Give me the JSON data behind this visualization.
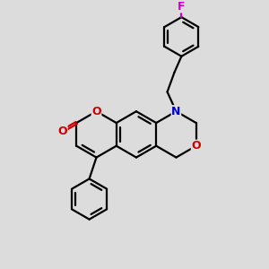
{
  "bg": "#dcdcdc",
  "bc": "#000000",
  "oc": "#cc0000",
  "nc": "#0000cc",
  "fc": "#cc00cc",
  "lw": 1.6,
  "figsize": [
    3.0,
    3.0
  ],
  "dpi": 100,
  "xlim": [
    0,
    300
  ],
  "ylim": [
    0,
    300
  ]
}
